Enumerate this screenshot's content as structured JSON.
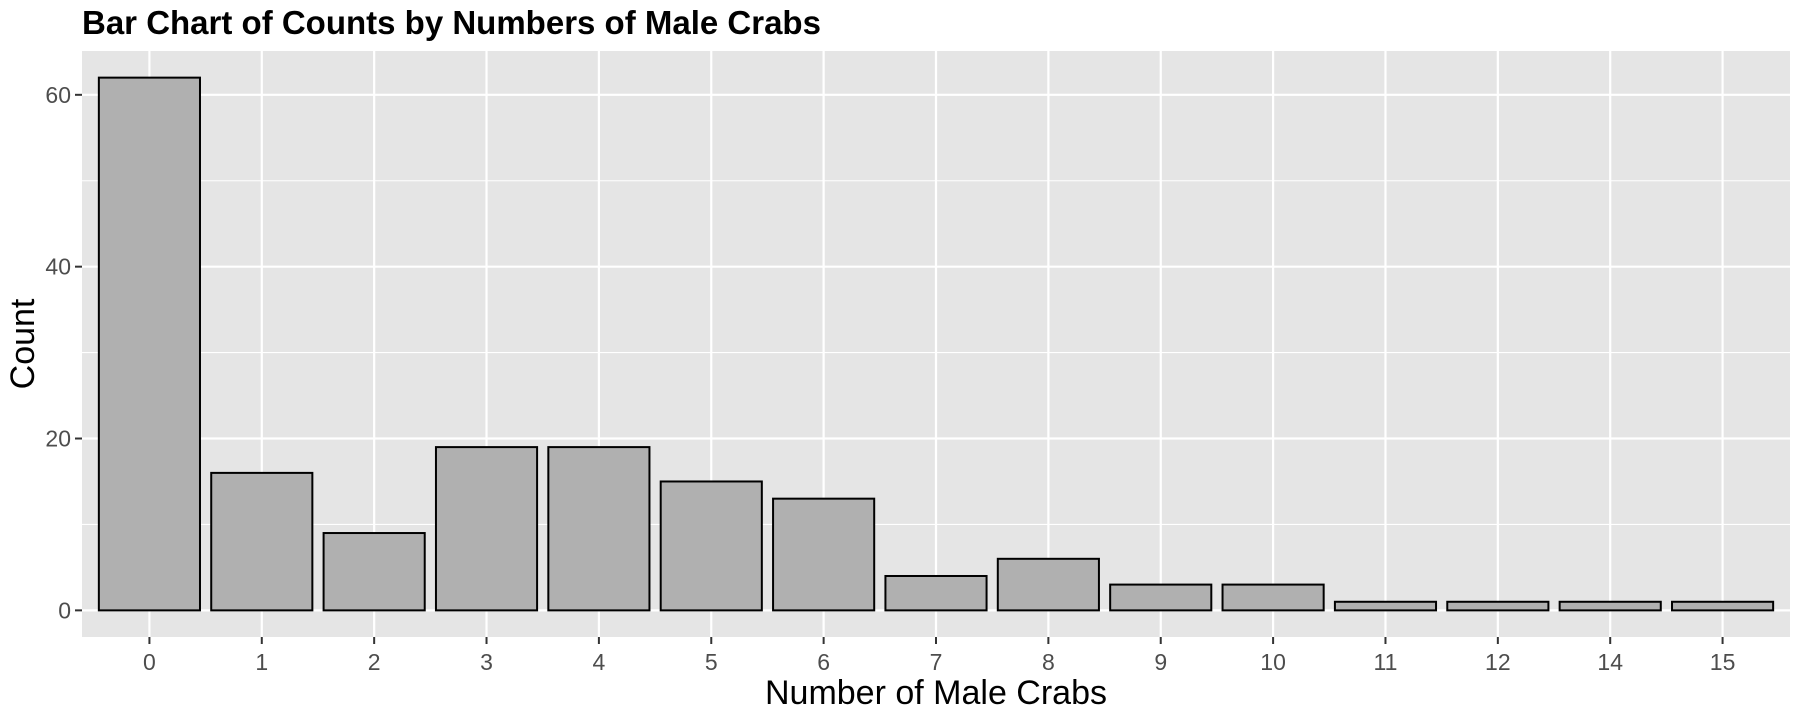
{
  "chart_data": {
    "type": "bar",
    "title": "Bar Chart of Counts by Numbers of Male Crabs",
    "xlabel": "Number of Male Crabs",
    "ylabel": "Count",
    "categories": [
      "0",
      "1",
      "2",
      "3",
      "4",
      "5",
      "6",
      "7",
      "8",
      "9",
      "10",
      "11",
      "12",
      "14",
      "15"
    ],
    "values": [
      62,
      16,
      9,
      19,
      19,
      15,
      13,
      4,
      6,
      3,
      3,
      1,
      1,
      1,
      1
    ],
    "ylim": [
      -3.1,
      65.1
    ],
    "yticks": [
      0,
      20,
      40,
      60
    ],
    "grid": true,
    "colors": {
      "panel_background": "#e5e5e5",
      "grid_major": "#ffffff",
      "bar_fill": "#b0b0b0",
      "bar_stroke": "#000000",
      "tick_text": "#4d4d4d"
    }
  }
}
